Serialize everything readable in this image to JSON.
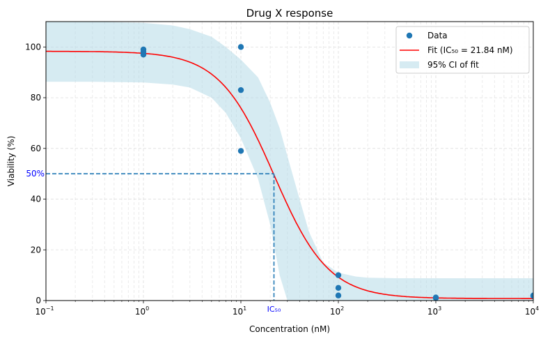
{
  "chart_data": {
    "type": "scatter",
    "title": "Drug X response",
    "xlabel": "Concentration (nM)",
    "ylabel": "Viability (%)",
    "xscale": "log",
    "xlim": [
      0.1,
      10000
    ],
    "ylim": [
      0,
      110
    ],
    "x_ticks": [
      {
        "value": 0.1,
        "base": "10",
        "exp": "−1"
      },
      {
        "value": 1,
        "base": "10",
        "exp": "0"
      },
      {
        "value": 10,
        "base": "10",
        "exp": "1"
      },
      {
        "value": 100,
        "base": "10",
        "exp": "2"
      },
      {
        "value": 1000,
        "base": "10",
        "exp": "3"
      },
      {
        "value": 10000,
        "base": "10",
        "exp": "4"
      }
    ],
    "y_ticks": [
      0,
      20,
      40,
      60,
      80,
      100
    ],
    "grid": true,
    "legend_position": "top-right",
    "colors": {
      "data": "#1f77b4",
      "fit": "#ff0000",
      "ci": "#add8e6",
      "guide": "#1f77b4",
      "annotation": "#0000ff"
    },
    "series": [
      {
        "name": "Data",
        "type": "scatter",
        "x": [
          1,
          1,
          1,
          10,
          10,
          10,
          100,
          100,
          100,
          1000,
          1000,
          10000,
          10000
        ],
        "y": [
          99,
          98,
          97,
          100,
          83,
          59,
          10,
          5,
          2,
          1.2,
          1,
          2,
          1.8
        ]
      },
      {
        "name": "Fit (IC₅₀ = 21.84 nM)",
        "type": "line",
        "model": "4PL",
        "top": 98.3,
        "bottom": 0.8,
        "ic50": 21.84,
        "hill": 1.55
      },
      {
        "name": "95% CI of fit",
        "type": "area",
        "x": [
          0.1,
          0.3,
          1,
          2,
          3,
          5,
          7,
          10,
          15,
          20,
          25,
          30,
          40,
          50,
          70,
          100,
          150,
          200,
          400,
          1000,
          10000
        ],
        "upper": [
          110,
          110,
          109.5,
          108.5,
          107,
          104,
          100,
          95,
          88,
          78,
          68,
          57,
          40,
          27,
          15,
          11,
          9.5,
          9,
          8.8,
          8.8,
          8.8
        ],
        "lower": [
          86.3,
          86.3,
          86,
          85.2,
          84,
          80,
          74,
          64,
          48,
          30,
          10,
          0,
          0,
          0,
          0,
          0,
          0,
          0,
          0,
          0,
          0
        ]
      }
    ],
    "annotations": {
      "y_marker_label": "50%",
      "y_marker_value": 50,
      "x_marker_label": "IC₅₀",
      "x_marker_value": 21.84
    }
  }
}
